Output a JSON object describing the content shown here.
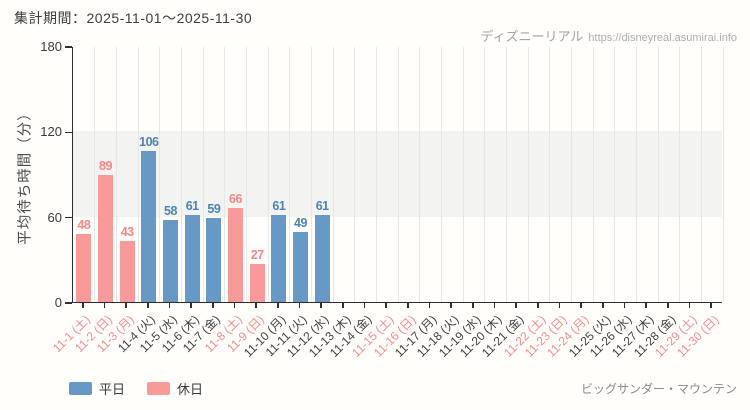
{
  "header": {
    "period_label": "集計期間：2025-11-01～2025-11-30"
  },
  "watermark": {
    "site_name": "ディズニーリアル",
    "url": "https://disneyreal.asumirai.info"
  },
  "footer": {
    "attraction": "ビッグサンダー・マウンテン"
  },
  "chart_data": {
    "type": "bar",
    "title": "集計期間：2025-11-01～2025-11-30",
    "xlabel": "",
    "ylabel": "平均待ち時間（分）",
    "ylim": [
      0,
      180
    ],
    "yticks": [
      0,
      60,
      120,
      180
    ],
    "grid": true,
    "shaded_band": {
      "from": 60,
      "to": 120
    },
    "legend_position": "bottom-left",
    "legend": {
      "weekday": "平日",
      "holiday": "休日"
    },
    "categories": [
      "11-1 (土)",
      "11-2 (日)",
      "11-3 (月)",
      "11-4 (火)",
      "11-5 (水)",
      "11-6 (木)",
      "11-7 (金)",
      "11-8 (土)",
      "11-9 (日)",
      "11-10 (月)",
      "11-11 (火)",
      "11-12 (水)",
      "11-13 (木)",
      "11-14 (金)",
      "11-15 (土)",
      "11-16 (日)",
      "11-17 (月)",
      "11-18 (火)",
      "11-19 (水)",
      "11-20 (木)",
      "11-21 (金)",
      "11-22 (土)",
      "11-23 (日)",
      "11-24 (月)",
      "11-25 (火)",
      "11-26 (水)",
      "11-27 (木)",
      "11-28 (金)",
      "11-29 (土)",
      "11-30 (日)"
    ],
    "day_types": [
      "holiday",
      "holiday",
      "holiday",
      "weekday",
      "weekday",
      "weekday",
      "weekday",
      "holiday",
      "holiday",
      "weekday",
      "weekday",
      "weekday",
      "weekday",
      "weekday",
      "holiday",
      "holiday",
      "weekday",
      "weekday",
      "weekday",
      "weekday",
      "weekday",
      "holiday",
      "holiday",
      "holiday",
      "weekday",
      "weekday",
      "weekday",
      "weekday",
      "holiday",
      "holiday"
    ],
    "values": [
      48,
      89,
      43,
      106,
      58,
      61,
      59,
      66,
      27,
      61,
      49,
      61,
      null,
      null,
      null,
      null,
      null,
      null,
      null,
      null,
      null,
      null,
      null,
      null,
      null,
      null,
      null,
      null,
      null,
      null
    ],
    "colors": {
      "weekday_bar": "#6899c6",
      "holiday_bar": "#f99a9a",
      "weekday_value_text": "#4d83b4",
      "holiday_value_text": "#f98585",
      "weekday_axis_label": "#3f3f3f",
      "holiday_axis_label": "#f88c8c",
      "grid": "#e7e7e7",
      "band": "#f3f3f2",
      "axis": "#2e2e2e"
    }
  }
}
